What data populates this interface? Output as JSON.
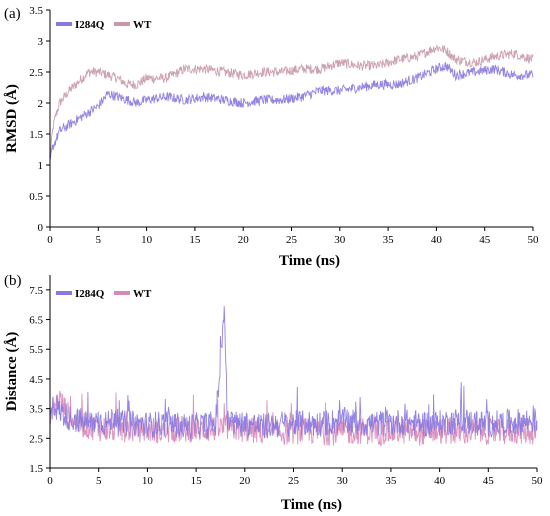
{
  "chart_data": [
    {
      "type": "line",
      "panel_label": "(a)",
      "xlabel": "Time (ns)",
      "ylabel": "RMSD (Å)",
      "xlim": [
        0,
        50
      ],
      "ylim": [
        0,
        3.5
      ],
      "xticks": [
        "0",
        "5",
        "10",
        "15",
        "20",
        "25",
        "30",
        "35",
        "40",
        "45",
        "50"
      ],
      "yticks": [
        "0",
        "0.5",
        "1",
        "1.5",
        "2",
        "2.5",
        "3",
        "3.5"
      ],
      "grid": false,
      "legend_position": "top-left",
      "series": [
        {
          "name": "I284Q",
          "color": "#8878e0",
          "x": [
            0,
            0.3,
            0.6,
            1,
            2,
            3,
            4,
            5,
            6,
            7,
            8,
            9,
            10,
            12,
            14,
            16,
            18,
            20,
            22,
            24,
            26,
            28,
            30,
            32,
            34,
            36,
            38,
            40,
            41,
            42,
            44,
            46,
            48,
            50
          ],
          "y": [
            1.05,
            1.3,
            1.4,
            1.55,
            1.65,
            1.75,
            1.85,
            1.95,
            2.15,
            2.1,
            2.05,
            2.0,
            2.05,
            2.1,
            2.05,
            2.1,
            2.05,
            2.0,
            2.05,
            2.05,
            2.1,
            2.2,
            2.2,
            2.25,
            2.3,
            2.3,
            2.4,
            2.55,
            2.6,
            2.45,
            2.5,
            2.55,
            2.45,
            2.45
          ]
        },
        {
          "name": "WT",
          "color": "#c898a8",
          "x": [
            0,
            0.3,
            0.6,
            1,
            2,
            3,
            4,
            5,
            6,
            7,
            8,
            9,
            10,
            12,
            14,
            16,
            18,
            20,
            22,
            24,
            26,
            28,
            30,
            32,
            34,
            36,
            38,
            40,
            41,
            42,
            44,
            46,
            48,
            50
          ],
          "y": [
            1.1,
            1.6,
            1.8,
            2.0,
            2.2,
            2.35,
            2.5,
            2.5,
            2.45,
            2.4,
            2.3,
            2.3,
            2.4,
            2.4,
            2.55,
            2.55,
            2.5,
            2.45,
            2.5,
            2.5,
            2.55,
            2.55,
            2.65,
            2.6,
            2.6,
            2.7,
            2.75,
            2.9,
            2.85,
            2.7,
            2.65,
            2.75,
            2.8,
            2.7
          ]
        }
      ]
    },
    {
      "type": "line",
      "panel_label": "(b)",
      "xlabel": "Time (ns)",
      "ylabel": "Distance (Å)",
      "xlim": [
        0,
        50
      ],
      "ylim": [
        1.5,
        8
      ],
      "xticks": [
        "0",
        "5",
        "10",
        "15",
        "20",
        "25",
        "30",
        "35",
        "40",
        "45",
        "50"
      ],
      "yticks": [
        "1.5",
        "2.5",
        "3.5",
        "4.5",
        "5.5",
        "6.5",
        "7.5"
      ],
      "grid": false,
      "legend_position": "top-left",
      "series": [
        {
          "name": "I284Q",
          "color": "#8878e0",
          "x": [
            0,
            0.5,
            1,
            2,
            3,
            4,
            5,
            6,
            6.7,
            7,
            8,
            10,
            12,
            14,
            16,
            17,
            17.6,
            17.9,
            18.2,
            19,
            20,
            22,
            24,
            26,
            28,
            30,
            32,
            34,
            36,
            38,
            40,
            42,
            44,
            46,
            48,
            50
          ],
          "y": [
            3.2,
            3.6,
            3.4,
            3.2,
            3.1,
            3.0,
            3.1,
            3.0,
            3.3,
            3.0,
            3.0,
            2.95,
            3.0,
            2.9,
            2.95,
            3.0,
            5.5,
            7.0,
            3.1,
            3.0,
            3.0,
            2.9,
            3.0,
            3.0,
            3.0,
            3.1,
            3.0,
            3.0,
            3.05,
            3.0,
            3.0,
            3.1,
            3.0,
            3.0,
            3.05,
            3.1
          ]
        },
        {
          "name": "WT",
          "color": "#d888b8",
          "x": [
            0,
            0.5,
            1,
            2,
            3,
            4,
            5,
            6,
            8,
            10,
            12,
            14,
            16,
            18,
            20,
            22,
            24,
            26,
            28,
            30,
            32,
            34,
            36,
            38,
            40,
            42,
            44,
            46,
            48,
            50
          ],
          "y": [
            3.4,
            3.6,
            3.8,
            3.2,
            3.0,
            2.9,
            2.85,
            2.8,
            2.8,
            2.8,
            2.75,
            2.8,
            2.8,
            2.85,
            2.8,
            2.7,
            2.7,
            2.75,
            2.7,
            2.7,
            2.75,
            2.7,
            2.75,
            2.7,
            2.75,
            2.7,
            2.75,
            2.7,
            2.75,
            2.7
          ]
        }
      ]
    }
  ]
}
